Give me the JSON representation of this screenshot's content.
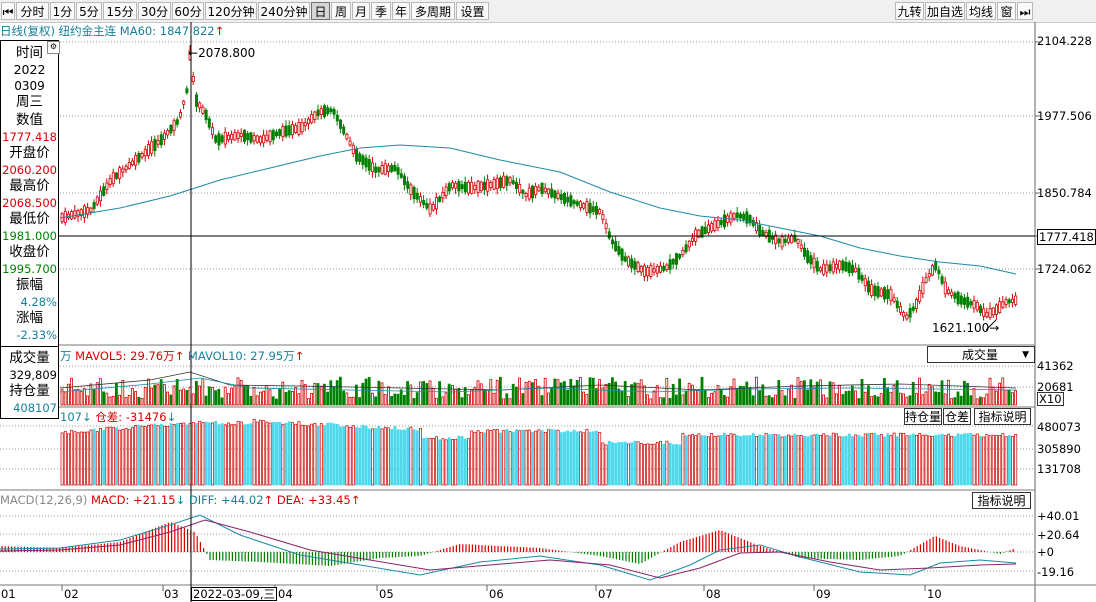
{
  "toolbar": {
    "left_buttons": [
      "分时",
      "1分",
      "5分",
      "15分",
      "30分",
      "60分",
      "120分钟",
      "240分钟",
      "日",
      "周",
      "月",
      "季",
      "年",
      "多周期",
      "设置"
    ],
    "selected": "日",
    "right_buttons": [
      "九转",
      "加自选",
      "均线",
      "窗"
    ]
  },
  "chart_title": {
    "period": "日线(复权)",
    "symbol": "纽约金主连",
    "ma60": "MA60: 1847.822"
  },
  "info_panel": {
    "time_label": "时间",
    "year": "2022",
    "date": "0309",
    "weekday": "周三",
    "value_label": "数值",
    "value": "1777.418",
    "open_label": "开盘价",
    "open": "2060.200",
    "high_label": "最高价",
    "high": "2068.500",
    "low_label": "最低价",
    "low": "1981.000",
    "close_label": "收盘价",
    "close": "1995.700",
    "amplitude_label": "振幅",
    "amplitude": "4.28%",
    "change_label": "涨幅",
    "change": "-2.33%",
    "volume_label": "成交量",
    "volume": "329,809",
    "oi_label": "持仓量",
    "oi": "408107"
  },
  "price_axis": [
    "2104.228",
    "1977.506",
    "1850.784",
    "1777.418",
    "1724.062"
  ],
  "annotations": {
    "high": "2078.800",
    "low": "1621.100"
  },
  "volume_panel": {
    "prefix": "万",
    "mavol5": "MAVOL5: 29.76万",
    "mavol10": "MAVOL10: 27.95万",
    "dropdown": "成交量",
    "axis": [
      "41362",
      "20681"
    ],
    "x10": "X10"
  },
  "oi_panel": {
    "prefix": "107",
    "diff": "仓差: -31476",
    "buttons": [
      "持仓量",
      "仓差",
      "指标说明"
    ],
    "axis": [
      "480073",
      "305890",
      "131708"
    ]
  },
  "macd_panel": {
    "name": "MACD(12,26,9)",
    "macd": "MACD: +21.15",
    "diff": "DIFF: +44.02",
    "dea": "DEA: +33.45",
    "button": "指标说明",
    "axis": [
      "+40.01",
      "+20.64",
      "+0",
      "-19.16"
    ]
  },
  "x_axis": [
    "01",
    "02",
    "03",
    "04",
    "05",
    "06",
    "07",
    "08",
    "09",
    "10"
  ],
  "cursor_date": "2022-03-09,三",
  "colors": {
    "up": "#d40000",
    "down": "#008000",
    "ma": "#1b8aa8",
    "oi": "#4fd8ec"
  }
}
